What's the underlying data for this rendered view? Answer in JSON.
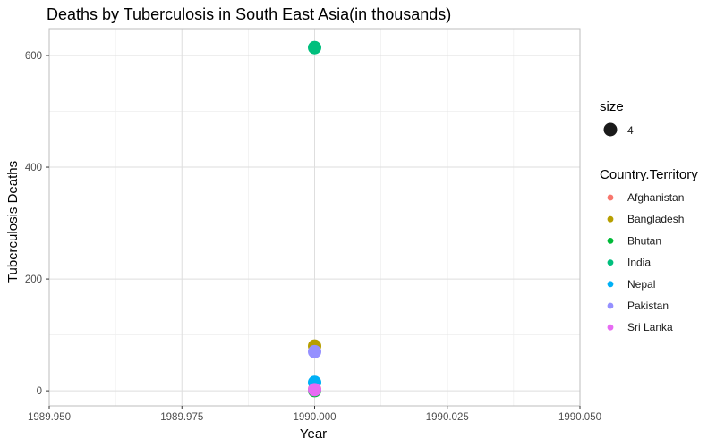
{
  "chart_data": {
    "type": "scatter",
    "title": "Deaths by Tuberculosis in South East Asia(in thousands)",
    "xlabel": "Year",
    "ylabel": "Tuberculosis Deaths",
    "xlim": [
      1989.95,
      1990.05
    ],
    "ylim": [
      -27,
      648
    ],
    "x_ticks": [
      1989.95,
      1989.975,
      1990.0,
      1990.025,
      1990.05
    ],
    "x_tick_labels": [
      "1989.950",
      "1989.975",
      "1990.000",
      "1990.025",
      "1990.050"
    ],
    "y_ticks": [
      0,
      200,
      400,
      600
    ],
    "y_tick_labels": [
      "0",
      "200",
      "400",
      "600"
    ],
    "grid": true,
    "legend_position": "right",
    "size_legend": {
      "title": "size",
      "label": "4"
    },
    "color_legend_title": "Country.Territory",
    "series": [
      {
        "name": "Afghanistan",
        "color": "#F8766D",
        "x": 1990.0,
        "y": 3
      },
      {
        "name": "Bangladesh",
        "color": "#B79F00",
        "x": 1990.0,
        "y": 80
      },
      {
        "name": "Bhutan",
        "color": "#00BA38",
        "x": 1990.0,
        "y": 0.3
      },
      {
        "name": "India",
        "color": "#00BF7D",
        "x": 1990.0,
        "y": 614
      },
      {
        "name": "Nepal",
        "color": "#00B0F6",
        "x": 1990.0,
        "y": 15
      },
      {
        "name": "Pakistan",
        "color": "#9590FF",
        "x": 1990.0,
        "y": 70
      },
      {
        "name": "Sri Lanka",
        "color": "#E76BF3",
        "x": 1990.0,
        "y": 2
      }
    ]
  }
}
